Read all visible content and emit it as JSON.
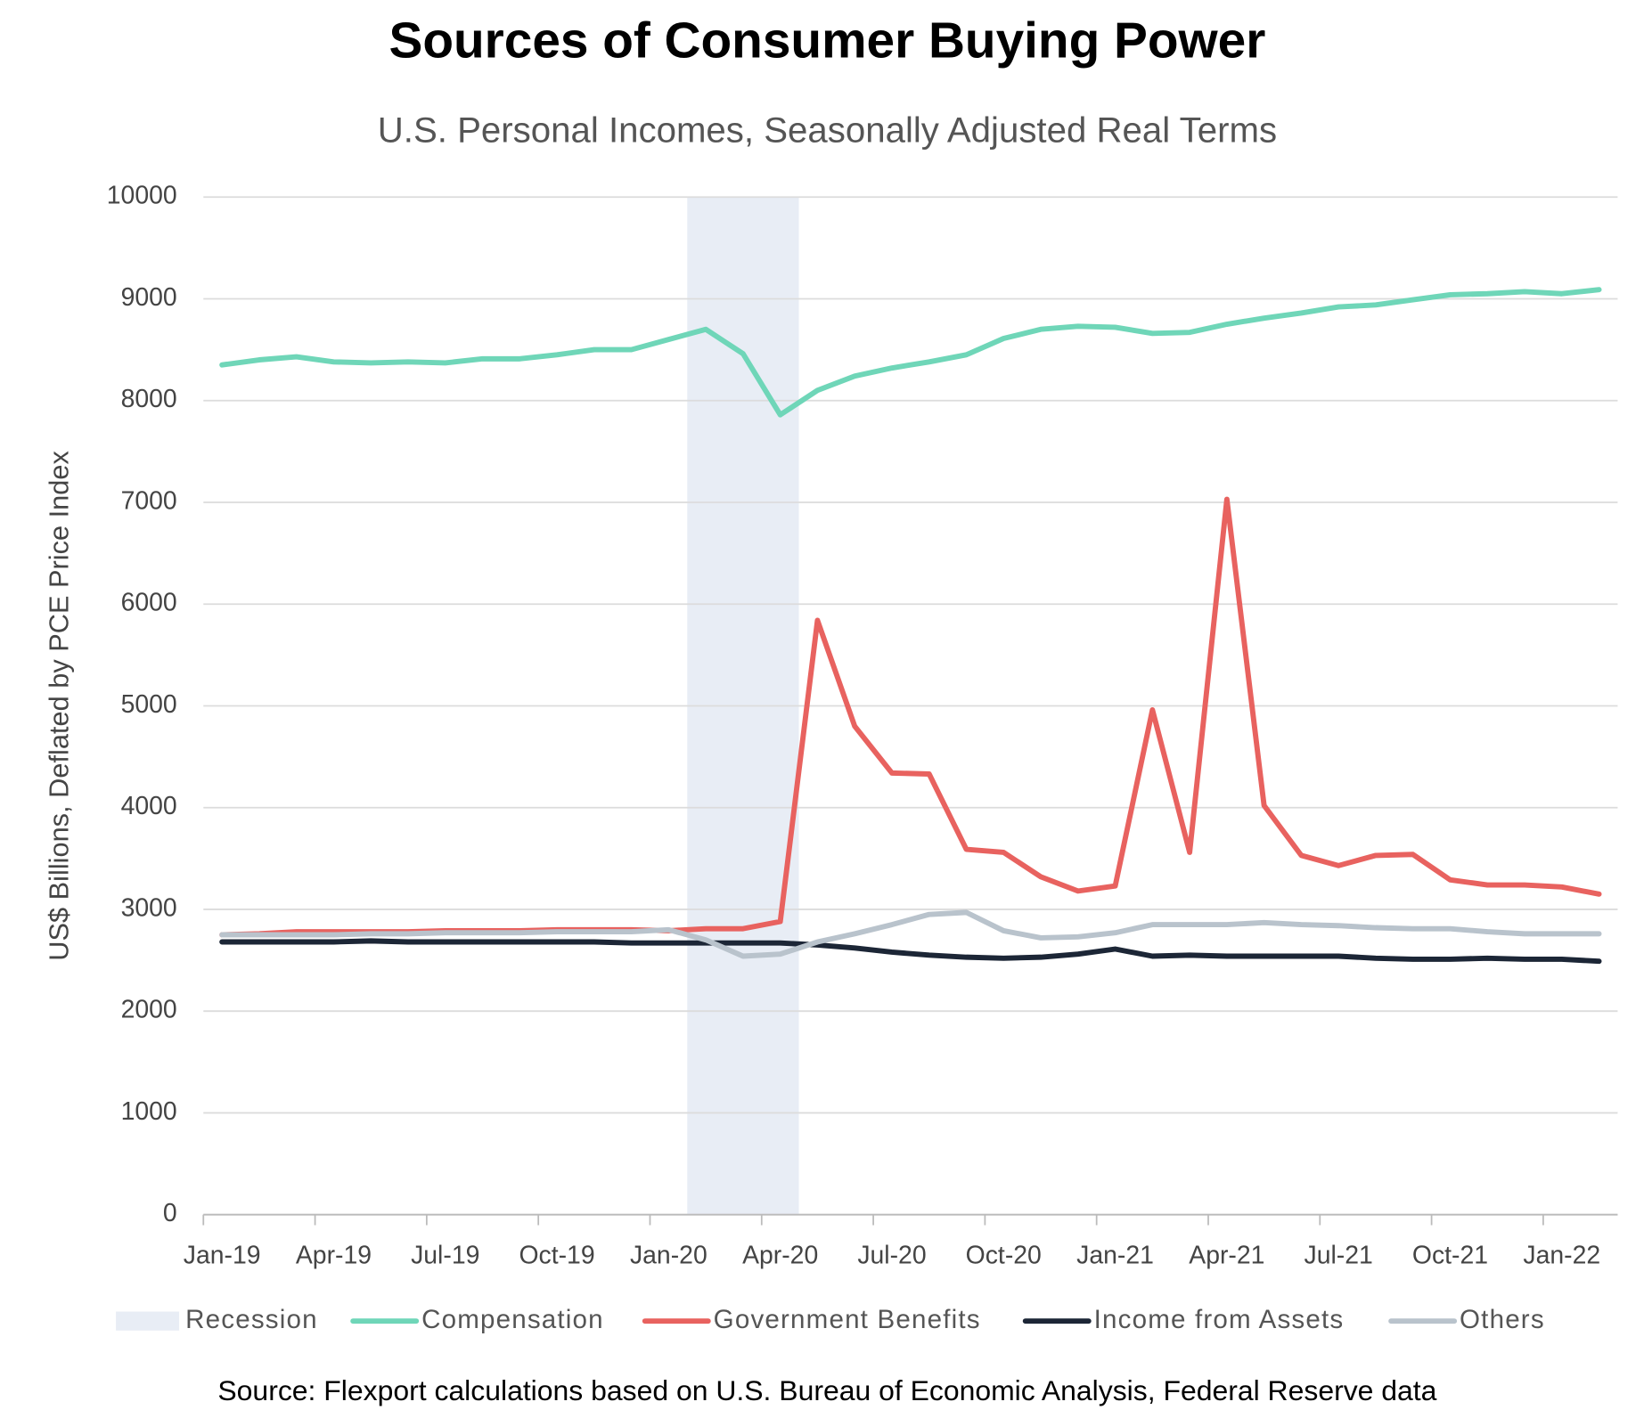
{
  "chart_data": {
    "type": "line",
    "title": "Sources of Consumer Buying Power",
    "subtitle": "U.S. Personal Incomes, Seasonally Adjusted Real Terms",
    "y_label": "US$ Billions, Deflated by PCE Price Index",
    "source": "Source: Flexport calculations based on U.S. Bureau of Economic Analysis, Federal Reserve data",
    "categories": [
      "Jan-19",
      null,
      null,
      "Apr-19",
      null,
      null,
      "Jul-19",
      null,
      null,
      "Oct-19",
      null,
      null,
      "Jan-20",
      null,
      null,
      "Apr-20",
      null,
      null,
      "Jul-20",
      null,
      null,
      "Oct-20",
      null,
      null,
      "Jan-21",
      null,
      null,
      "Apr-21",
      null,
      null,
      "Jul-21",
      null,
      null,
      "Oct-21",
      null,
      null,
      "Jan-22",
      null
    ],
    "shaded_range": {
      "name": "Recession",
      "color": "#e8edf5",
      "x_range": [
        13,
        15
      ]
    },
    "series": [
      {
        "name": "Compensation",
        "color": "#6fd6b8",
        "values": [
          8350,
          8400,
          8430,
          8380,
          8370,
          8380,
          8370,
          8410,
          8410,
          8450,
          8500,
          8500,
          8600,
          8700,
          8460,
          7860,
          8100,
          8240,
          8320,
          8380,
          8450,
          8610,
          8700,
          8730,
          8720,
          8660,
          8670,
          8750,
          8810,
          8860,
          8920,
          8940,
          8990,
          9040,
          9050,
          9070,
          9050,
          9090
        ]
      },
      {
        "name": "Government Benefits",
        "color": "#e8625f",
        "values": [
          2750,
          2760,
          2780,
          2780,
          2780,
          2780,
          2790,
          2790,
          2790,
          2800,
          2800,
          2800,
          2790,
          2810,
          2810,
          2880,
          5840,
          4800,
          4340,
          4330,
          3590,
          3560,
          3320,
          3180,
          3230,
          4960,
          3560,
          7030,
          4020,
          3530,
          3430,
          3530,
          3540,
          3290,
          3240,
          3240,
          3220,
          3150
        ]
      },
      {
        "name": "Income from Assets",
        "color": "#1c2636",
        "values": [
          2680,
          2680,
          2680,
          2680,
          2690,
          2680,
          2680,
          2680,
          2680,
          2680,
          2680,
          2670,
          2670,
          2670,
          2670,
          2670,
          2650,
          2620,
          2580,
          2550,
          2530,
          2520,
          2530,
          2560,
          2610,
          2540,
          2550,
          2540,
          2540,
          2540,
          2540,
          2520,
          2510,
          2510,
          2520,
          2510,
          2510,
          2490
        ]
      },
      {
        "name": "Others",
        "color": "#b9c3cc",
        "values": [
          2750,
          2750,
          2750,
          2750,
          2760,
          2760,
          2770,
          2770,
          2770,
          2780,
          2780,
          2780,
          2800,
          2700,
          2540,
          2560,
          2680,
          2760,
          2850,
          2950,
          2970,
          2790,
          2720,
          2730,
          2770,
          2850,
          2850,
          2850,
          2870,
          2850,
          2840,
          2820,
          2810,
          2810,
          2780,
          2760,
          2760,
          2760
        ]
      }
    ],
    "ylim": [
      0,
      10000
    ],
    "yticks": [
      0,
      1000,
      2000,
      3000,
      4000,
      5000,
      6000,
      7000,
      8000,
      9000,
      10000
    ],
    "grid": true,
    "legend": "bottom"
  }
}
